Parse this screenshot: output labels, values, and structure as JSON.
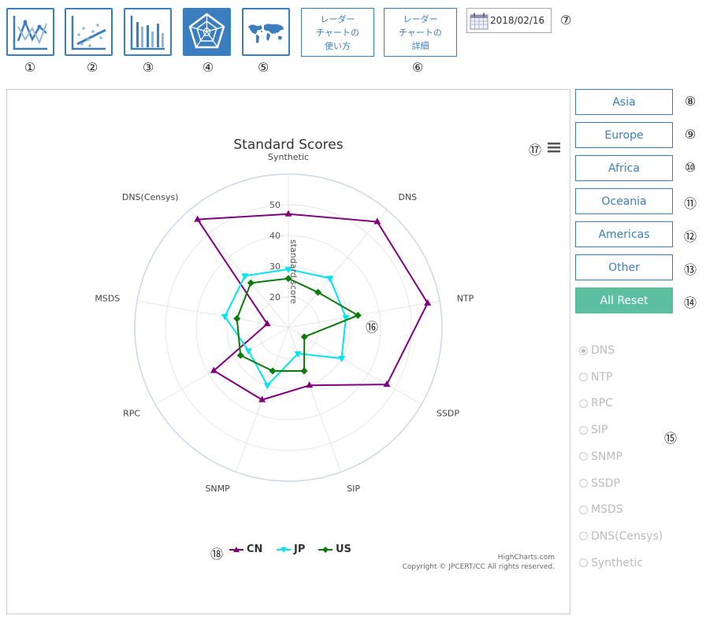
{
  "toolbar": {
    "icon_buttons": [
      {
        "icon": "line-chart-icon",
        "number": "①"
      },
      {
        "icon": "scatter-chart-icon",
        "number": "②"
      },
      {
        "icon": "bar-chart-icon",
        "number": "③"
      },
      {
        "icon": "radar-chart-icon",
        "number": "④"
      },
      {
        "icon": "world-map-icon",
        "number": "⑤"
      }
    ],
    "radar_usage_label": "レーダー\nチャートの\n使い方",
    "radar_details_label": "レーダー\nチャートの\n詳細",
    "text_buttons_number": "⑥",
    "date_value": "2018/02/16",
    "date_number": "⑦"
  },
  "regions": {
    "buttons": [
      {
        "label": "Asia",
        "number": "⑧"
      },
      {
        "label": "Europe",
        "number": "⑨"
      },
      {
        "label": "Africa",
        "number": "⑩"
      },
      {
        "label": "Oceania",
        "number": "⑪"
      },
      {
        "label": "Americas",
        "number": "⑫"
      },
      {
        "label": "Other",
        "number": "⑬"
      }
    ],
    "reset_label": "All Reset",
    "reset_number": "⑭"
  },
  "metrics": {
    "options": [
      "DNS",
      "NTP",
      "RPC",
      "SIP",
      "SNMP",
      "SSDP",
      "MSDS",
      "DNS(Censys)",
      "Synthetic"
    ],
    "selected": "DNS",
    "number": "⑮"
  },
  "chart_annotations": {
    "plot_number": "⑯",
    "menu_number": "⑰",
    "legend_number": "⑱"
  },
  "chart_data": {
    "type": "radar",
    "title": "Standard Scores",
    "axis_title": "standard score",
    "categories": [
      "Synthetic",
      "DNS",
      "NTP",
      "SSDP",
      "SIP",
      "SNMP",
      "RPC",
      "MSDS",
      "DNS(Censys)"
    ],
    "radial_ticks": [
      20,
      30,
      40,
      50
    ],
    "rmin": 10,
    "rmax": 60,
    "series": [
      {
        "name": "CN",
        "color": "#800080",
        "marker": "triangle",
        "values": [
          47,
          55,
          56,
          47,
          30,
          35,
          38,
          17,
          56
        ]
      },
      {
        "name": "JP",
        "color": "#00e5ee",
        "marker": "triangle-down",
        "values": [
          29,
          31,
          29,
          30,
          19,
          30,
          25,
          31,
          32
        ]
      },
      {
        "name": "US",
        "color": "#0a7a0a",
        "marker": "diamond",
        "values": [
          26,
          25,
          33,
          16,
          25,
          25,
          28,
          27,
          29
        ]
      }
    ],
    "credit_line1": "HighCharts.com",
    "credit_line2": "Copyright © JPCERT/CC All rights reserved."
  }
}
